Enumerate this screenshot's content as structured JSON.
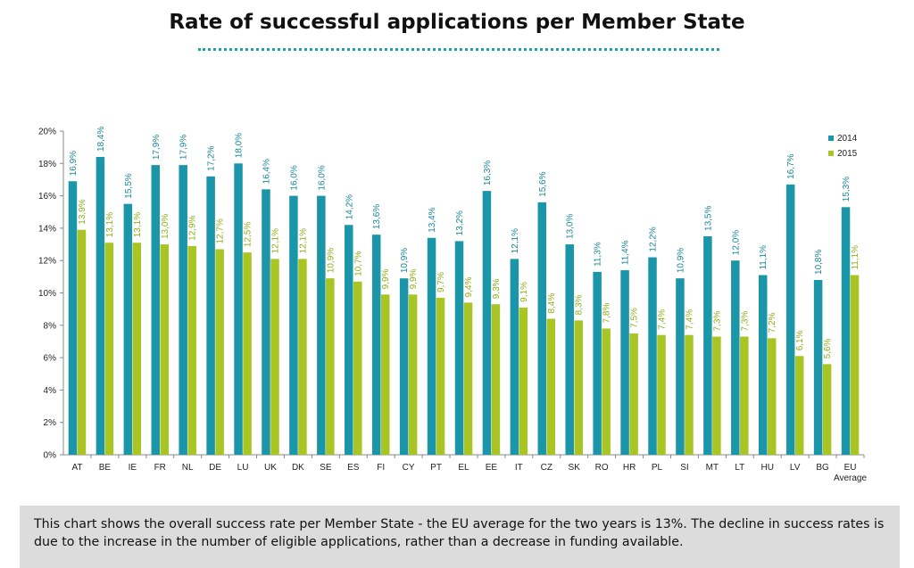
{
  "caption": "This chart shows the overall success rate per Member State - the EU average for the two years is 13%. The decline in success rates is due to the increase in the number of eligible applications, rather than a decrease in funding available.",
  "colors": {
    "s2014": "#1b96a8",
    "s2015": "#a8c523",
    "label2014": "#1b8796",
    "label2015": "#8fae16",
    "title_dots": "#1aa3a8"
  },
  "chart_data": {
    "type": "bar",
    "title": "Rate of successful applications per Member State",
    "categories": [
      "AT",
      "BE",
      "IE",
      "FR",
      "NL",
      "DE",
      "LU",
      "UK",
      "DK",
      "SE",
      "ES",
      "FI",
      "CY",
      "PT",
      "EL",
      "EE",
      "IT",
      "CZ",
      "SK",
      "RO",
      "HR",
      "PL",
      "SI",
      "MT",
      "LT",
      "HU",
      "LV",
      "BG",
      "EU Average"
    ],
    "series": [
      {
        "name": "2014",
        "values": [
          16.9,
          18.4,
          15.5,
          17.9,
          17.9,
          17.2,
          18.0,
          16.4,
          16.0,
          16.0,
          14.2,
          13.6,
          10.9,
          13.4,
          13.2,
          16.3,
          12.1,
          15.6,
          13.0,
          11.3,
          11.4,
          12.2,
          10.9,
          13.5,
          12.0,
          11.1,
          16.7,
          10.8,
          15.3
        ],
        "labels": [
          "16,9%",
          "18,4%",
          "15,5%",
          "17,9%",
          "17,9%",
          "17,2%",
          "18,0%",
          "16,4%",
          "16,0%",
          "16,0%",
          "14,2%",
          "13,6%",
          "10,9%",
          "13,4%",
          "13,2%",
          "16,3%",
          "12,1%",
          "15,6%",
          "13,0%",
          "11,3%",
          "11,4%",
          "12,2%",
          "10,9%",
          "13,5%",
          "12,0%",
          "11,1%",
          "16,7%",
          "10,8%",
          "15,3%"
        ]
      },
      {
        "name": "2015",
        "values": [
          13.9,
          13.1,
          13.1,
          13.0,
          12.9,
          12.7,
          12.5,
          12.1,
          12.1,
          10.9,
          10.7,
          9.9,
          9.9,
          9.7,
          9.4,
          9.3,
          9.1,
          8.4,
          8.3,
          7.8,
          7.5,
          7.4,
          7.4,
          7.3,
          7.3,
          7.2,
          6.1,
          5.6,
          11.1
        ],
        "labels": [
          "13,9%",
          "13,1%",
          "13,1%",
          "13,0%",
          "12,9%",
          "12,7%",
          "12,5%",
          "12,1%",
          "12,1%",
          "10,9%",
          "10,7%",
          "9,9%",
          "9,9%",
          "9,7%",
          "9,4%",
          "9,3%",
          "9,1%",
          "8,4%",
          "8,3%",
          "7,8%",
          "7,5%",
          "7,4%",
          "7,4%",
          "7,3%",
          "7,3%",
          "7,2%",
          "6,1%",
          "5,6%",
          "11,1%"
        ]
      }
    ],
    "yticks": [
      "0%",
      "2%",
      "4%",
      "6%",
      "8%",
      "10%",
      "12%",
      "14%",
      "16%",
      "18%",
      "20%"
    ],
    "ylim": [
      0,
      20
    ],
    "legend_position": "top-right",
    "grid": false
  }
}
